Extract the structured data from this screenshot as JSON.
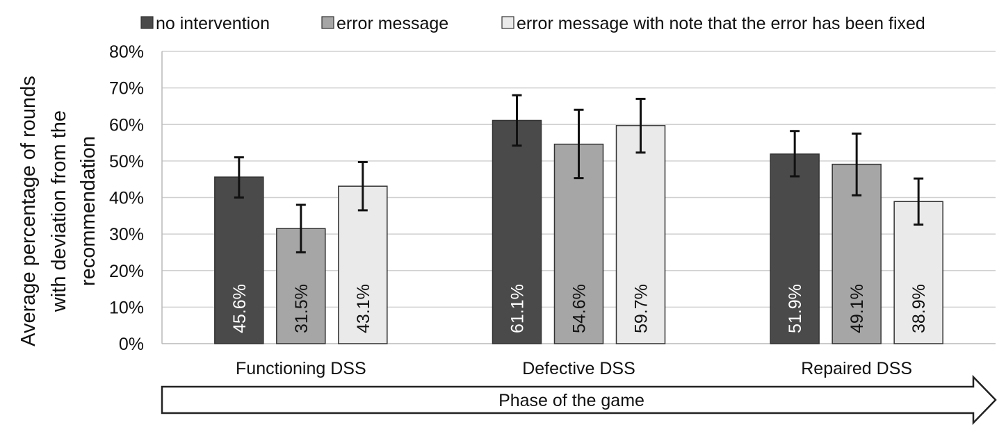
{
  "chart_data": {
    "type": "bar",
    "title": "",
    "xlabel": "Phase of the game",
    "ylabel_lines": [
      "Average percentage of rounds",
      "with deviation from the",
      "recommendation"
    ],
    "ylim": [
      0,
      80
    ],
    "yticks": [
      0,
      10,
      20,
      30,
      40,
      50,
      60,
      70,
      80
    ],
    "ytick_labels": [
      "0%",
      "10%",
      "20%",
      "30%",
      "40%",
      "50%",
      "60%",
      "70%",
      "80%"
    ],
    "grid": true,
    "legend_position": "top",
    "categories": [
      "Functioning DSS",
      "Defective DSS",
      "Repaired DSS"
    ],
    "series": [
      {
        "name": "no intervention",
        "color": "#4a4a4a",
        "label_color": "#ffffff",
        "values": [
          45.6,
          61.1,
          51.9
        ],
        "labels": [
          "45.6%",
          "61.1%",
          "51.9%"
        ],
        "error_low": [
          40.0,
          54.2,
          45.8
        ],
        "error_high": [
          51.0,
          68.0,
          58.2
        ]
      },
      {
        "name": "error message",
        "color": "#a6a6a6",
        "label_color": "#111111",
        "values": [
          31.5,
          54.6,
          49.1
        ],
        "labels": [
          "31.5%",
          "54.6%",
          "49.1%"
        ],
        "error_low": [
          25.0,
          45.3,
          40.6
        ],
        "error_high": [
          38.0,
          64.0,
          57.5
        ]
      },
      {
        "name": "error message with note that the error has been fixed",
        "color": "#eaeaea",
        "label_color": "#111111",
        "values": [
          43.1,
          59.7,
          38.9
        ],
        "labels": [
          "43.1%",
          "59.7%",
          "38.9%"
        ],
        "error_low": [
          36.5,
          52.3,
          32.6
        ],
        "error_high": [
          49.7,
          67.0,
          45.2
        ]
      }
    ]
  }
}
